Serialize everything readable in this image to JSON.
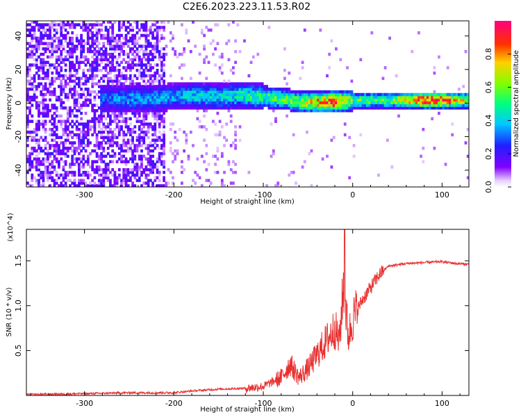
{
  "figure_title": "C2E6.2023.223.11.53.R02",
  "chart_data": [
    {
      "type": "heatmap",
      "title": "C2E6.2023.223.11.53.R02",
      "xlabel": "Height of straight line (km)",
      "ylabel": "Frequency (Hz)",
      "xlim": [
        -365,
        130
      ],
      "ylim": [
        -50,
        49
      ],
      "x_ticks": [
        -300,
        -200,
        -100,
        0,
        100
      ],
      "y_ticks": [
        -40,
        -20,
        0,
        20,
        40
      ],
      "colorbar": {
        "label": "Normalized spectral amplitude",
        "range": [
          0.0,
          1.0
        ],
        "ticks": [
          0.0,
          0.2,
          0.4,
          0.6,
          0.8
        ],
        "colormap": "rainbow (purple to red to magenta)"
      },
      "grid": false,
      "ridge": [
        {
          "x": -275,
          "freq": 2,
          "amp": 0.3
        },
        {
          "x": -250,
          "freq": 2,
          "amp": 0.35
        },
        {
          "x": -200,
          "freq": 3,
          "amp": 0.35
        },
        {
          "x": -180,
          "freq": 4,
          "amp": 0.4
        },
        {
          "x": -150,
          "freq": 3,
          "amp": 0.4
        },
        {
          "x": -130,
          "freq": 4,
          "amp": 0.45
        },
        {
          "x": -100,
          "freq": 3,
          "amp": 0.5
        },
        {
          "x": -80,
          "freq": 2,
          "amp": 0.55
        },
        {
          "x": -60,
          "freq": 0,
          "amp": 0.6
        },
        {
          "x": -40,
          "freq": 0,
          "amp": 0.75
        },
        {
          "x": -20,
          "freq": 0,
          "amp": 0.85
        },
        {
          "x": 0,
          "freq": 1,
          "amp": 0.55
        },
        {
          "x": 40,
          "freq": 1,
          "amp": 0.55
        },
        {
          "x": 80,
          "freq": 1,
          "amp": 0.9
        },
        {
          "x": 100,
          "freq": 1,
          "amp": 0.85
        },
        {
          "x": 130,
          "freq": 1,
          "amp": 0.6
        }
      ]
    },
    {
      "type": "line",
      "xlabel": "Height of straight line (km)",
      "ylabel": "SNR (10 * v/v)",
      "y_multiplier": "(x10^4)",
      "xlim": [
        -365,
        130
      ],
      "ylim": [
        0,
        1.85
      ],
      "x_ticks": [
        -300,
        -200,
        -100,
        0,
        100
      ],
      "y_ticks": [
        0.5,
        1.0,
        1.5
      ],
      "y_tick_labels": [
        "0.5",
        "1.0",
        "1.5"
      ],
      "grid": false,
      "series": [
        {
          "color": "#e83030",
          "x": [
            -365,
            -300,
            -250,
            -200,
            -180,
            -150,
            -120,
            -100,
            -80,
            -70,
            -60,
            -50,
            -40,
            -30,
            -20,
            -15,
            -10,
            -5,
            0,
            10,
            20,
            30,
            40,
            60,
            80,
            100,
            115,
            130
          ],
          "y": [
            0.01,
            0.02,
            0.03,
            0.03,
            0.05,
            0.07,
            0.08,
            0.1,
            0.2,
            0.35,
            0.2,
            0.3,
            0.45,
            0.6,
            0.75,
            0.6,
            1.25,
            0.65,
            0.85,
            1.05,
            1.2,
            1.35,
            1.44,
            1.47,
            1.48,
            1.49,
            1.47,
            1.46
          ]
        }
      ]
    }
  ]
}
